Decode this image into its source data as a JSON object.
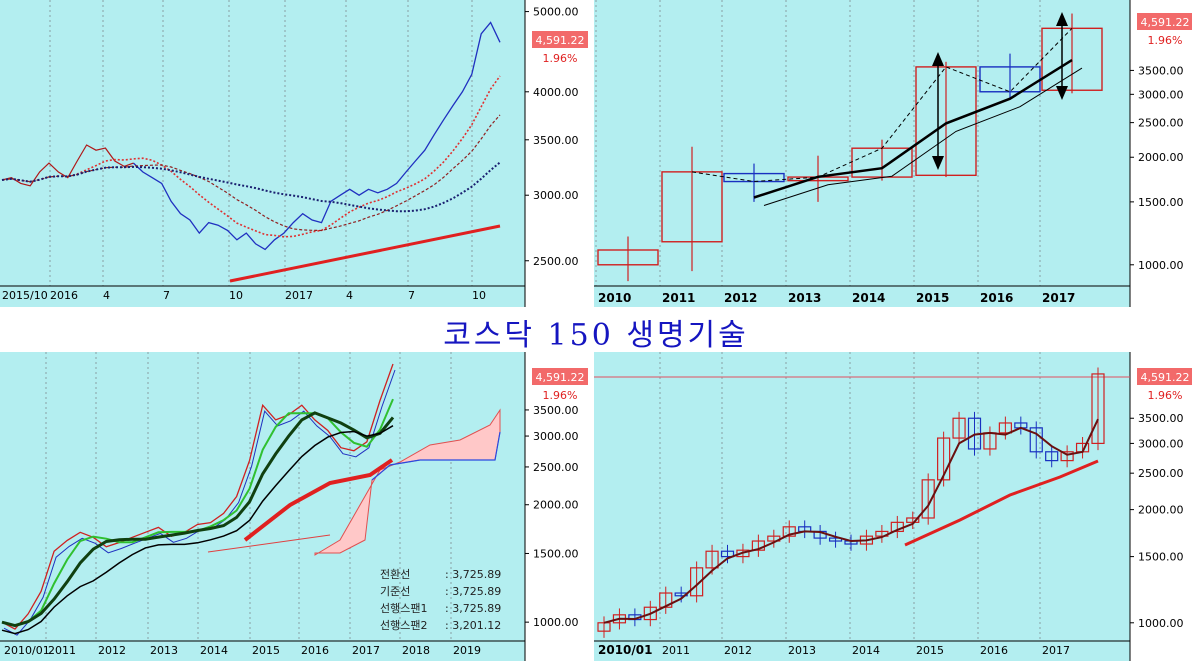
{
  "title": "코스닥 150 생명기술",
  "chart_data": [
    {
      "id": "daily",
      "type": "line",
      "last_price": "4,591.22",
      "change": "1.96%",
      "yticks": [
        "5000.00",
        "4000.00",
        "3500.00",
        "3000.00",
        "2500.00"
      ],
      "ytick_values": [
        5000,
        4000,
        3500,
        3000,
        2500
      ],
      "ylim": [
        2350,
        5050
      ],
      "log_scale": true,
      "xticks": [
        "2015/10",
        "2016",
        "4",
        "7",
        "10",
        "2017",
        "4",
        "7",
        "10"
      ],
      "series": [
        {
          "values": [
            3130,
            3150,
            3100,
            3080,
            3200,
            3280,
            3200,
            3150,
            3300,
            3450,
            3400,
            3420,
            3300,
            3250,
            3280,
            3200,
            3150,
            3100,
            2950,
            2850,
            2800,
            2700,
            2780,
            2760,
            2720,
            2650,
            2700,
            2620,
            2580,
            2650,
            2700,
            2780,
            2850,
            2800,
            2780,
            2950,
            3000,
            3050,
            3000,
            3050,
            3020,
            3050,
            3100,
            3200,
            3300,
            3400,
            3550,
            3700,
            3850,
            4000,
            4200,
            4700,
            4850,
            4591
          ]
        }
      ],
      "moving_averages": [
        "red dotted",
        "dark red dotted",
        "dark blue dotted",
        "solid red"
      ]
    },
    {
      "id": "yearly",
      "type": "candlestick",
      "last_price": "4,591.22",
      "change": "1.96%",
      "yticks": [
        "3500.00",
        "3000.00",
        "2500.00",
        "2000.00",
        "1500.00",
        "1000.00"
      ],
      "ytick_values": [
        3500,
        3000,
        2500,
        2000,
        1500,
        1000
      ],
      "ylim": [
        850,
        5100
      ],
      "log_scale": true,
      "categories": [
        "2010",
        "2011",
        "2012",
        "2013",
        "2014",
        "2015",
        "2016",
        "2017"
      ],
      "ohlc": [
        [
          1000,
          1200,
          900,
          1100
        ],
        [
          1160,
          2140,
          960,
          1820
        ],
        [
          1800,
          1920,
          1500,
          1710
        ],
        [
          1720,
          2020,
          1500,
          1760
        ],
        [
          1760,
          2240,
          1720,
          2120
        ],
        [
          1780,
          3700,
          1760,
          3580
        ],
        [
          3580,
          3900,
          2900,
          3050
        ],
        [
          3080,
          5050,
          3020,
          4591
        ]
      ]
    },
    {
      "id": "ichimoku",
      "type": "line",
      "last_price": "4,591.22",
      "change": "1.96%",
      "yticks": [
        "3500.00",
        "3000.00",
        "2500.00",
        "2000.00",
        "1500.00",
        "1000.00"
      ],
      "ytick_values": [
        3500,
        3000,
        2500,
        2000,
        1500,
        1000
      ],
      "ylim": [
        900,
        4700
      ],
      "log_scale": true,
      "xticks": [
        "2010/01",
        "2011",
        "2012",
        "2013",
        "2014",
        "2015",
        "2016",
        "2017",
        "2018",
        "2019"
      ],
      "price_series": [
        1000,
        960,
        1050,
        1200,
        1520,
        1620,
        1700,
        1650,
        1560,
        1600,
        1650,
        1700,
        1750,
        1660,
        1700,
        1780,
        1800,
        1900,
        2100,
        2600,
        3600,
        3300,
        3400,
        3600,
        3300,
        3100,
        2800,
        2750,
        2900,
        3700,
        4591
      ],
      "legend": [
        {
          "label": "전환선",
          "value": ": 3,725.89"
        },
        {
          "label": "기준선",
          "value": ": 3,725.89"
        },
        {
          "label": "선행스팬1",
          "value": ": 3,725.89"
        },
        {
          "label": "선행스팬2",
          "value": ": 3,201.12"
        }
      ]
    },
    {
      "id": "monthly",
      "type": "candlestick",
      "last_price": "4,591.22",
      "change": "1.96%",
      "yticks": [
        "3500.00",
        "3000.00",
        "2500.00",
        "2000.00",
        "1500.00",
        "1000.00"
      ],
      "ytick_values": [
        3500,
        3000,
        2500,
        2000,
        1500,
        1000
      ],
      "ylim": [
        900,
        5000
      ],
      "log_scale": true,
      "xticks": [
        "2010/01",
        "2011",
        "2012",
        "2013",
        "2014",
        "2015",
        "2016",
        "2017"
      ],
      "close_series": [
        1000,
        1050,
        1020,
        1100,
        1200,
        1180,
        1400,
        1550,
        1500,
        1560,
        1650,
        1700,
        1800,
        1750,
        1680,
        1650,
        1620,
        1700,
        1750,
        1850,
        1900,
        2400,
        3100,
        3500,
        2900,
        3200,
        3400,
        3300,
        2850,
        2700,
        2850,
        3000,
        4591
      ]
    }
  ]
}
